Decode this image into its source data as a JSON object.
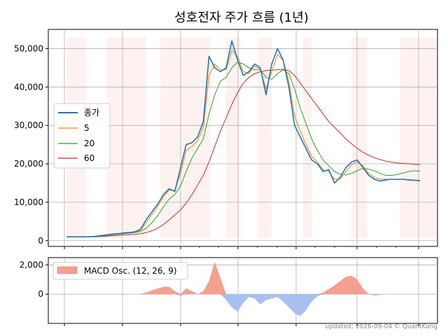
{
  "chart_title": "성호전자 주가 흐름 (1년)",
  "footer": "updated: 2026-09-04 © QuantKang",
  "colors": {
    "close": "#1f77b4",
    "ma5": "#ff7f0e",
    "ma20": "#2ca02c",
    "ma60": "#d62728",
    "shade": "#fde8e4",
    "macd_pos": "#f4a090",
    "macd_neg": "#a8c0f0",
    "grid": "#b0b0b0"
  },
  "chart_data": [
    {
      "type": "line",
      "title": "성호전자 주가 흐름 (1년)",
      "xlabel": "",
      "ylabel": "",
      "ylim": [
        -1500,
        55000
      ],
      "yticks": [
        0,
        10000,
        20000,
        30000,
        40000,
        50000
      ],
      "ytick_labels": [
        "0",
        "10,000",
        "20,000",
        "30,000",
        "40,000",
        "50,000"
      ],
      "grid": true,
      "legend_position": "center-left",
      "x": [
        0,
        4,
        8,
        12,
        16,
        20,
        24,
        28,
        32,
        36,
        40,
        44,
        48,
        52,
        56,
        60,
        64,
        68,
        72,
        76,
        80,
        84,
        88,
        92,
        96,
        100,
        104,
        108,
        112,
        116,
        120,
        124,
        128,
        132,
        136,
        140,
        144,
        148,
        152,
        156,
        160,
        164,
        168,
        172,
        176,
        180,
        184,
        188,
        192,
        196,
        200,
        204,
        208,
        212,
        216,
        220,
        224,
        228,
        232,
        236,
        240,
        244,
        248
      ],
      "series": [
        {
          "name": "종가",
          "values": [
            1000,
            1000,
            1000,
            1000,
            1000,
            1100,
            1300,
            1500,
            1700,
            1800,
            2000,
            2100,
            2300,
            3000,
            5500,
            7500,
            9500,
            12000,
            13500,
            12800,
            19000,
            25000,
            25500,
            27000,
            31000,
            48000,
            45000,
            44000,
            45000,
            52000,
            47000,
            43000,
            44000,
            46000,
            45000,
            38000,
            46000,
            50000,
            47000,
            40000,
            30000,
            27000,
            24000,
            21000,
            20000,
            18000,
            18500,
            15000,
            16500,
            19000,
            20500,
            21000,
            19000,
            17000,
            16000,
            15500,
            15800,
            16000,
            15900,
            16000,
            15800,
            15700,
            15600
          ]
        },
        {
          "name": "5",
          "values": [
            1000,
            1000,
            1000,
            1000,
            1000,
            1050,
            1250,
            1400,
            1650,
            1800,
            1950,
            2100,
            2250,
            2700,
            4700,
            6800,
            8900,
            11400,
            13200,
            13000,
            17500,
            23500,
            24500,
            26000,
            29500,
            43000,
            46000,
            44500,
            44500,
            49500,
            48000,
            44000,
            43500,
            45500,
            44500,
            39500,
            44000,
            48500,
            47000,
            41500,
            32500,
            28500,
            25000,
            22000,
            20500,
            18500,
            18000,
            16000,
            16000,
            18000,
            19800,
            20500,
            19500,
            17500,
            16500,
            16000,
            16000,
            16000,
            16000,
            16000,
            15900,
            15800,
            15700
          ]
        },
        {
          "name": "20",
          "values": [
            1000,
            1000,
            1000,
            1000,
            1000,
            1020,
            1150,
            1300,
            1500,
            1650,
            1800,
            1950,
            2100,
            2400,
            3200,
            4700,
            6500,
            8800,
            10800,
            12000,
            14200,
            18000,
            21500,
            24000,
            26500,
            33000,
            38000,
            41500,
            42500,
            45000,
            46500,
            46000,
            45000,
            44500,
            44500,
            42500,
            42000,
            43500,
            44500,
            43500,
            39500,
            34500,
            30500,
            26500,
            23500,
            21000,
            19500,
            18000,
            17300,
            17100,
            17500,
            18200,
            18800,
            18600,
            18200,
            17500,
            17000,
            17000,
            17200,
            17600,
            18000,
            18200,
            18100
          ]
        },
        {
          "name": "60",
          "values": [
            1000,
            1000,
            1000,
            1000,
            1000,
            1010,
            1050,
            1150,
            1250,
            1350,
            1450,
            1550,
            1650,
            1800,
            2100,
            2600,
            3200,
            4200,
            5400,
            6700,
            8000,
            9800,
            12000,
            14500,
            17000,
            20500,
            24500,
            28500,
            32000,
            35500,
            38500,
            41000,
            42500,
            43500,
            44000,
            44300,
            44400,
            44500,
            44600,
            44300,
            43000,
            41000,
            39000,
            37000,
            35000,
            33000,
            31000,
            29500,
            28000,
            26500,
            25200,
            24000,
            23000,
            22200,
            21600,
            21100,
            20700,
            20400,
            20200,
            20100,
            20000,
            19900,
            19800
          ]
        }
      ]
    },
    {
      "type": "area",
      "title": "",
      "ylim": [
        -2000,
        2500
      ],
      "yticks": [
        0,
        2000
      ],
      "ytick_labels": [
        "0",
        "2,000"
      ],
      "grid": true,
      "legend_position": "top-left",
      "x": [
        0,
        4,
        8,
        12,
        16,
        20,
        24,
        28,
        32,
        36,
        40,
        44,
        48,
        52,
        56,
        60,
        64,
        68,
        72,
        76,
        80,
        84,
        88,
        92,
        96,
        100,
        104,
        108,
        112,
        116,
        120,
        124,
        128,
        132,
        136,
        140,
        144,
        148,
        152,
        156,
        160,
        164,
        168,
        172,
        176,
        180,
        184,
        188,
        192,
        196,
        200,
        204,
        208,
        212,
        216,
        220,
        224,
        228,
        232,
        236,
        240,
        244,
        248
      ],
      "series": [
        {
          "name": "MACD Osc. (12, 26, 9)",
          "values": [
            0,
            0,
            0,
            0,
            0,
            0,
            0,
            0,
            0,
            0,
            0,
            0,
            0,
            20,
            120,
            260,
            380,
            500,
            500,
            200,
            -120,
            400,
            200,
            0,
            200,
            900,
            2200,
            1100,
            -400,
            -900,
            -1200,
            -600,
            -200,
            -300,
            -700,
            -400,
            -300,
            -200,
            -500,
            -900,
            -1300,
            -1500,
            -1100,
            -500,
            -150,
            100,
            350,
            600,
            900,
            1200,
            1250,
            1000,
            400,
            0,
            -100,
            -50,
            0,
            0,
            0,
            0,
            0,
            0,
            0
          ]
        }
      ]
    }
  ]
}
